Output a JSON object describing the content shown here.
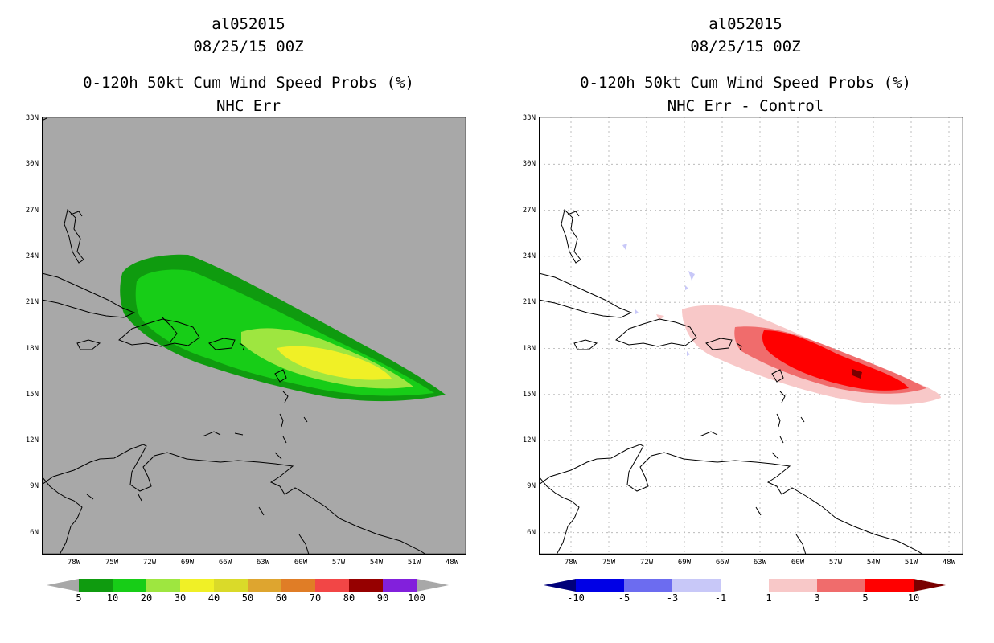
{
  "panels": [
    {
      "id": "left",
      "storm_id": "al052015",
      "datetime": "08/25/15 00Z",
      "product": "0-120h 50kt Cum Wind Speed Probs (%)",
      "subtitle": "NHC Err",
      "background": "#a8a8a8",
      "colorbar": {
        "labels": [
          "5",
          "10",
          "20",
          "30",
          "40",
          "50",
          "60",
          "70",
          "80",
          "90",
          "100"
        ],
        "colors": [
          "#0f9b0f",
          "#17cd17",
          "#9ee640",
          "#f0f026",
          "#dada29",
          "#dea52f",
          "#e07d26",
          "#f24646",
          "#960000",
          "#8220dc"
        ],
        "under": "#a8a8a8",
        "over": "#a8a8a8"
      }
    },
    {
      "id": "right",
      "storm_id": "al052015",
      "datetime": "08/25/15 00Z",
      "product": "0-120h 50kt Cum Wind Speed Probs (%)",
      "subtitle": "NHC Err - Control",
      "background": "#ffffff",
      "colorbar": {
        "labels": [
          "-10",
          "-5",
          "-3",
          "-1",
          "1",
          "3",
          "5",
          "10"
        ],
        "colors": [
          "#0000e6",
          "#6c6cf0",
          "#c8c8f8",
          "#ffffff",
          "#f8c8c8",
          "#f06c6c",
          "#ff0000"
        ],
        "under": "#00007a",
        "over": "#7a0000"
      }
    }
  ],
  "axes": {
    "lat_labels": [
      "33N",
      "30N",
      "27N",
      "24N",
      "21N",
      "18N",
      "15N",
      "12N",
      "9N",
      "6N"
    ],
    "lon_labels": [
      "78W",
      "75W",
      "72W",
      "69W",
      "66W",
      "63W",
      "60W",
      "57W",
      "54W",
      "51W",
      "48W"
    ]
  }
}
